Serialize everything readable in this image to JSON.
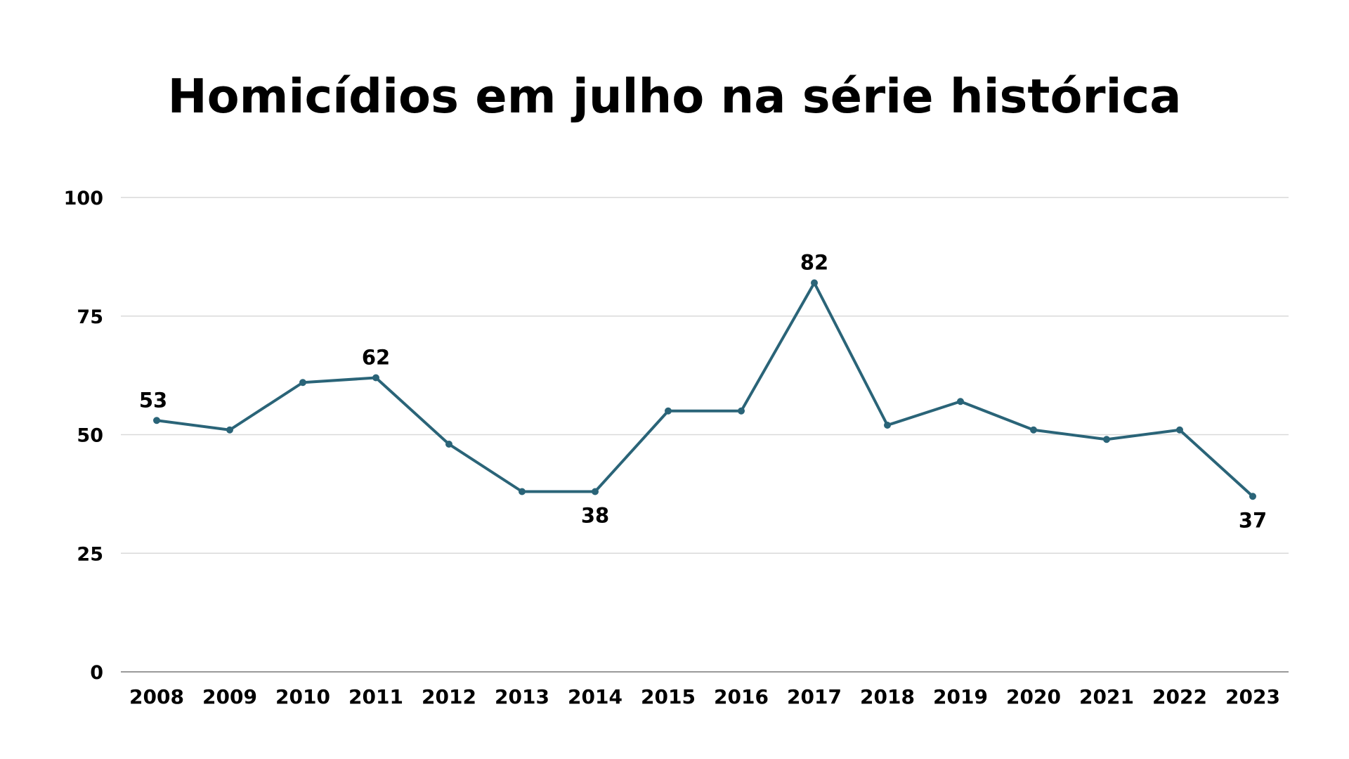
{
  "chart_data": {
    "type": "line",
    "title": "Homicídios em julho na série histórica",
    "xlabel": "",
    "ylabel": "",
    "x": [
      "2008",
      "2009",
      "2010",
      "2011",
      "2012",
      "2013",
      "2014",
      "2015",
      "2016",
      "2017",
      "2018",
      "2019",
      "2020",
      "2021",
      "2022",
      "2023"
    ],
    "series": [
      {
        "values": [
          53,
          51,
          61,
          62,
          48,
          38,
          38,
          55,
          55,
          82,
          52,
          57,
          51,
          49,
          51,
          37
        ]
      }
    ],
    "data_labels": [
      {
        "x": "2008",
        "value": "53",
        "position": "above"
      },
      {
        "x": "2011",
        "value": "62",
        "position": "above"
      },
      {
        "x": "2014",
        "value": "38",
        "position": "below"
      },
      {
        "x": "2017",
        "value": "82",
        "position": "above"
      },
      {
        "x": "2023",
        "value": "37",
        "position": "below"
      }
    ],
    "ylim": [
      0,
      100
    ],
    "yticks": [
      "0",
      "25",
      "50",
      "75",
      "100"
    ],
    "grid": true,
    "legend": "none",
    "colors": {
      "line": "#2a6478",
      "grid": "#d9d9d9",
      "axis": "#9a9a9a",
      "text": "#000000"
    }
  }
}
